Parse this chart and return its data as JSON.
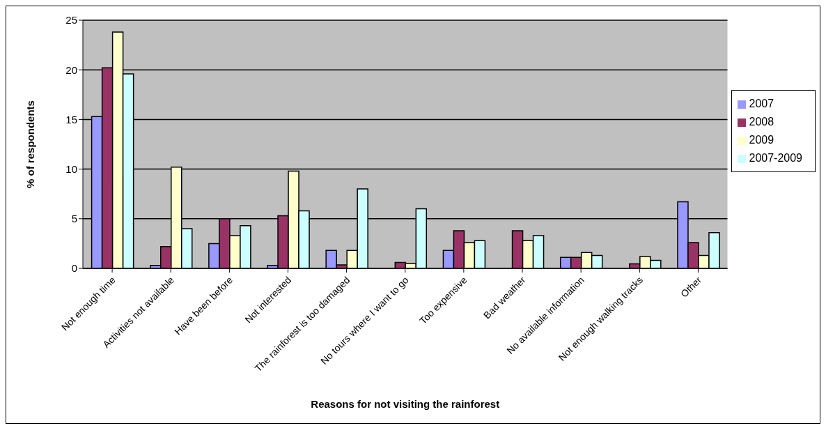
{
  "chart_data": {
    "type": "bar",
    "xlabel": "Reasons for not visiting the rainforest",
    "ylabel": "% of respondents",
    "categories": [
      "Not enough time",
      "Activities not available",
      "Have been before",
      "Not interested",
      "The rainforest is too damaged",
      "No tours where I want to go",
      "Too expensive",
      "Bad weather",
      "No available information",
      "Not enough walking tracks",
      "Other"
    ],
    "series": [
      {
        "name": "2007",
        "color": "#9999ff",
        "values": [
          15.3,
          0.3,
          2.5,
          0.3,
          1.8,
          0,
          1.8,
          0,
          1.1,
          0,
          6.7
        ]
      },
      {
        "name": "2008",
        "color": "#993366",
        "values": [
          20.2,
          2.2,
          5.0,
          5.3,
          0.35,
          0.6,
          3.8,
          3.8,
          1.1,
          0.45,
          2.6
        ]
      },
      {
        "name": "2009",
        "color": "#ffffcc",
        "values": [
          23.8,
          10.2,
          3.3,
          9.8,
          1.8,
          0.5,
          2.6,
          2.8,
          1.6,
          1.2,
          1.3
        ]
      },
      {
        "name": "2007-2009",
        "color": "#ccffff",
        "values": [
          19.6,
          4.0,
          4.3,
          5.8,
          8.0,
          6.0,
          2.8,
          3.3,
          1.3,
          0.8,
          3.6
        ]
      }
    ],
    "ylim": [
      0,
      25
    ],
    "yticks": [
      0,
      5,
      10,
      15,
      20,
      25
    ],
    "grid": "y",
    "legend": "right"
  }
}
